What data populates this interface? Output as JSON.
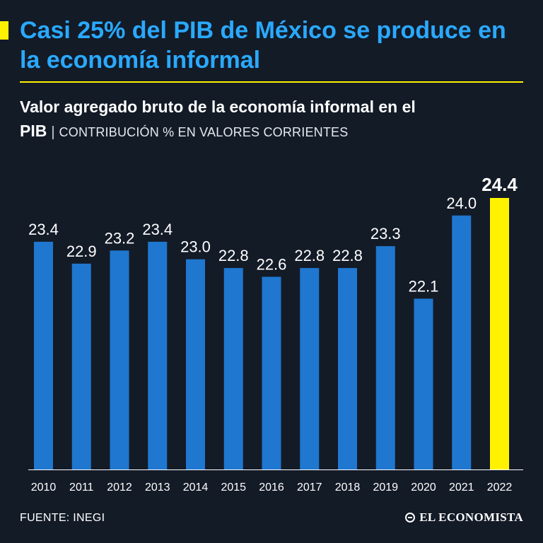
{
  "header": {
    "headline": "Casi 25% del PIB de México se produce en la economía informal",
    "subtitle_strong": "Valor agregado bruto de la economía informal en el PIB",
    "subtitle_sep": "|",
    "subtitle_light": "CONTRIBUCIÓN % EN VALORES CORRIENTES"
  },
  "footer": {
    "source": "FUENTE: INEGI",
    "brand": "EL ECONOMISTA"
  },
  "colors": {
    "background": "#131b27",
    "bar": "#1f77d0",
    "highlight": "#fff200",
    "headline": "#2aa9ff",
    "text": "#ffffff"
  },
  "chart_data": {
    "type": "bar",
    "title": "Valor agregado bruto de la economía informal en el PIB",
    "subtitle": "CONTRIBUCIÓN % EN VALORES CORRIENTES",
    "xlabel": "",
    "ylabel": "",
    "grid": false,
    "categories": [
      "2010",
      "2011",
      "2012",
      "2013",
      "2014",
      "2015",
      "2016",
      "2017",
      "2018",
      "2019",
      "2020",
      "2021",
      "2022"
    ],
    "values": [
      23.4,
      22.9,
      23.2,
      23.4,
      23.0,
      22.8,
      22.6,
      22.8,
      22.8,
      23.3,
      22.1,
      24.0,
      24.4
    ],
    "labels": [
      "23.4",
      "22.9",
      "23.2",
      "23.4",
      "23.0",
      "22.8",
      "22.6",
      "22.8",
      "22.8",
      "23.3",
      "22.1",
      "24.0",
      "24.4"
    ],
    "highlight_category": "2022",
    "ylim": [
      18.2,
      24.4
    ]
  }
}
